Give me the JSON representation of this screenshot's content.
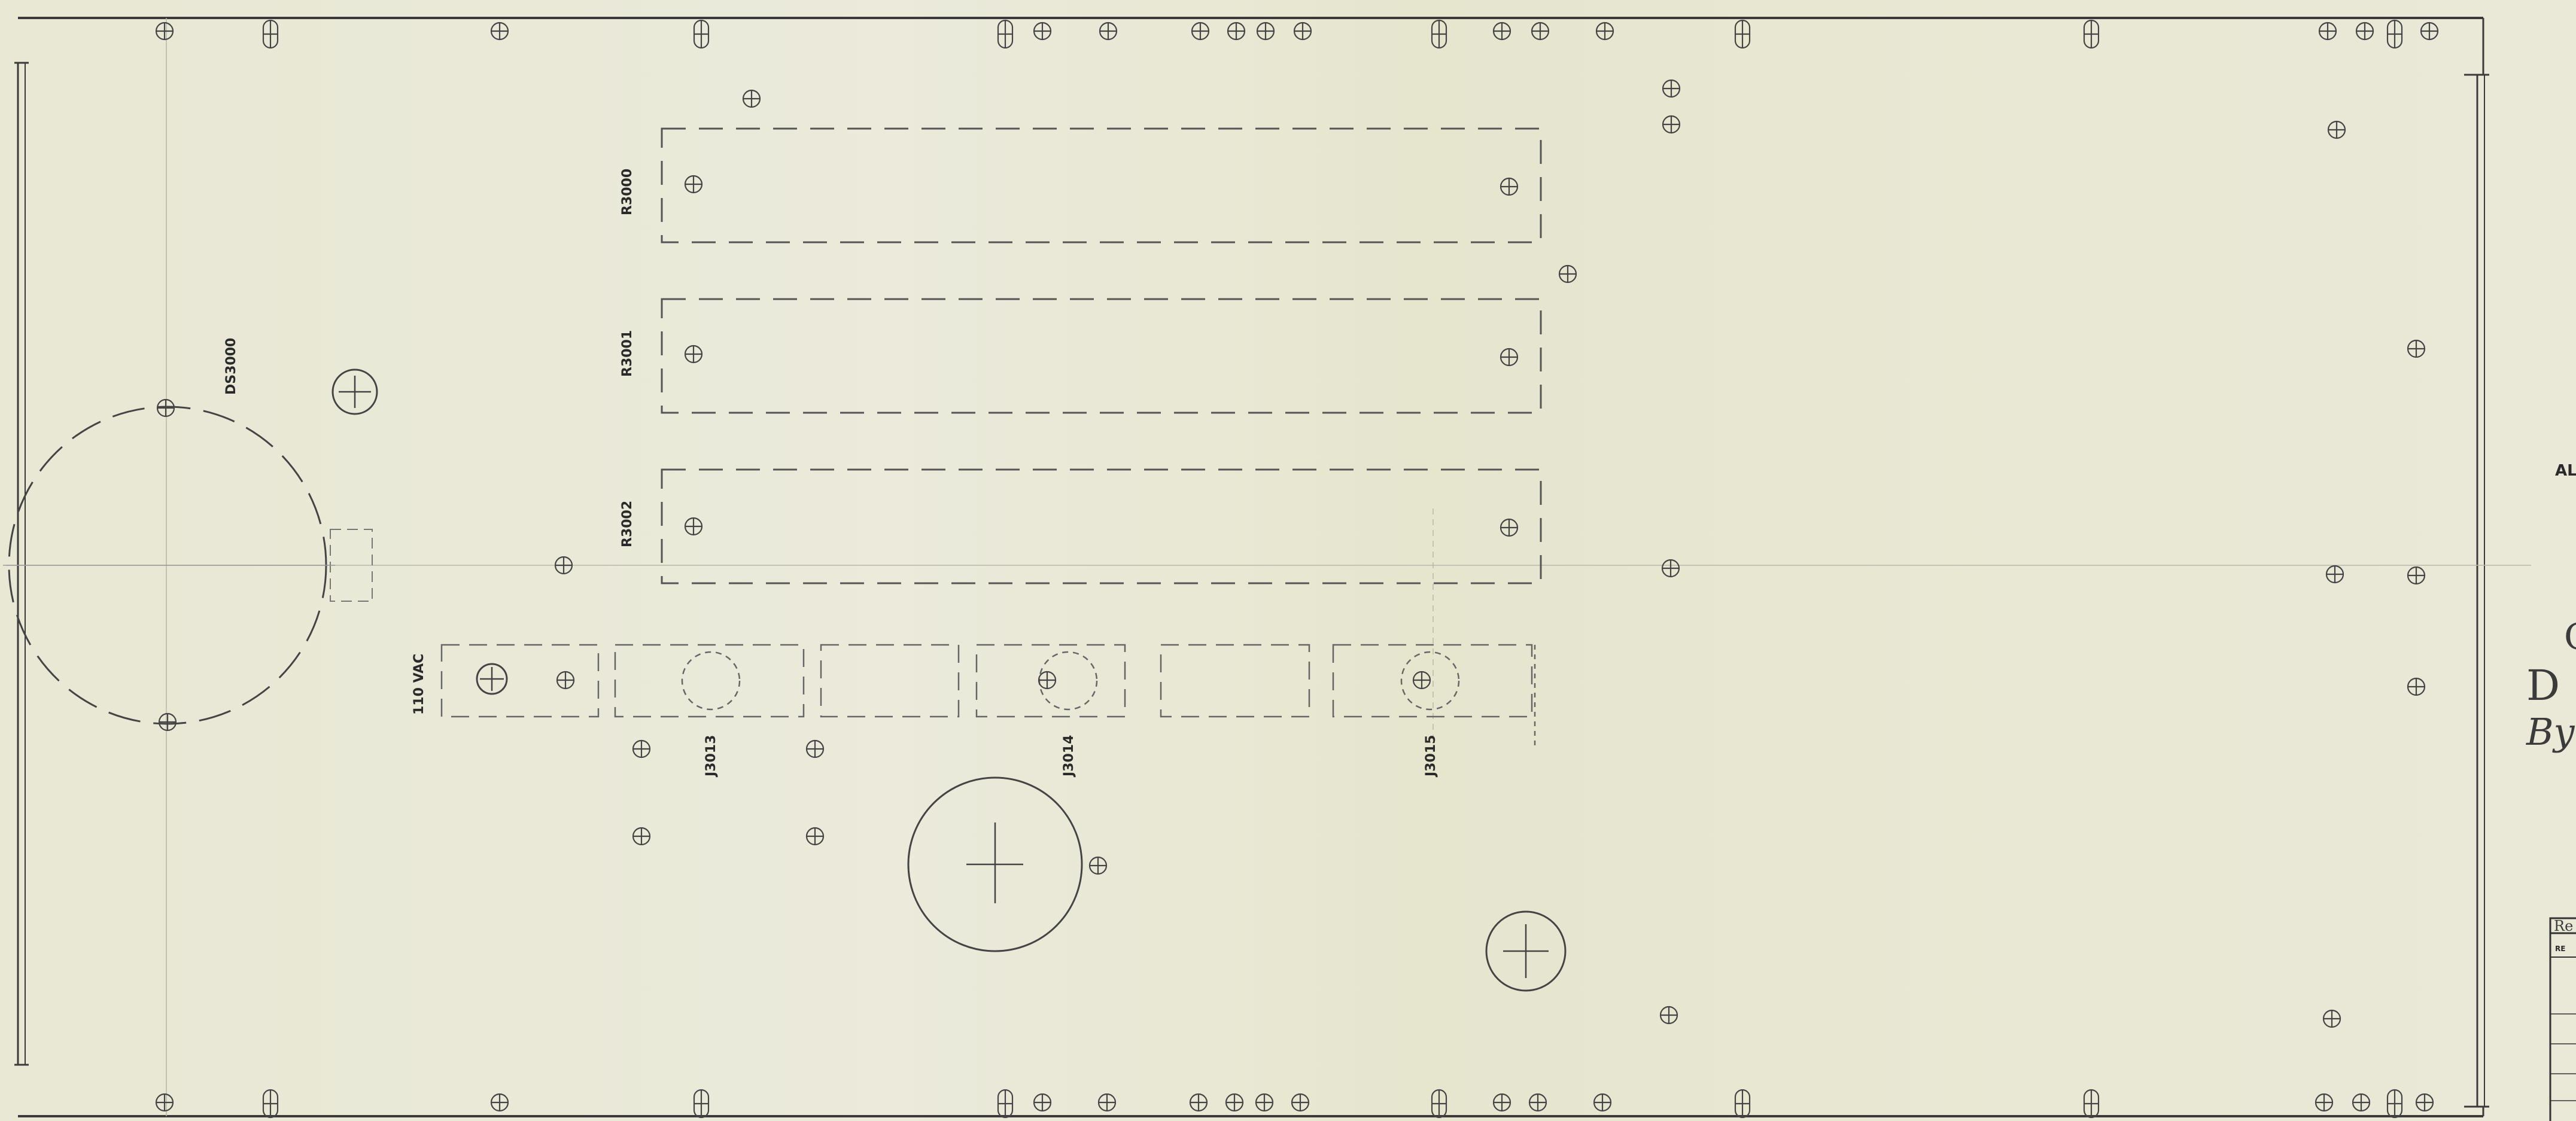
{
  "components": {
    "ds3000": "DS3000",
    "r3000": "R3000",
    "r3001": "R3001",
    "r3002": "R3002",
    "vac": "110 VAC",
    "j3013": "J3013",
    "j3014": "J3014",
    "j3015": "J3015"
  },
  "margin_notes": {
    "al": "AL",
    "c": "C",
    "d": "D",
    "by": "By"
  },
  "revision_block": {
    "title": "Re",
    "header": "RE"
  },
  "colors": {
    "paper": "#e9e8d6",
    "ink": "#3a3a3a",
    "hole": "#444444"
  }
}
